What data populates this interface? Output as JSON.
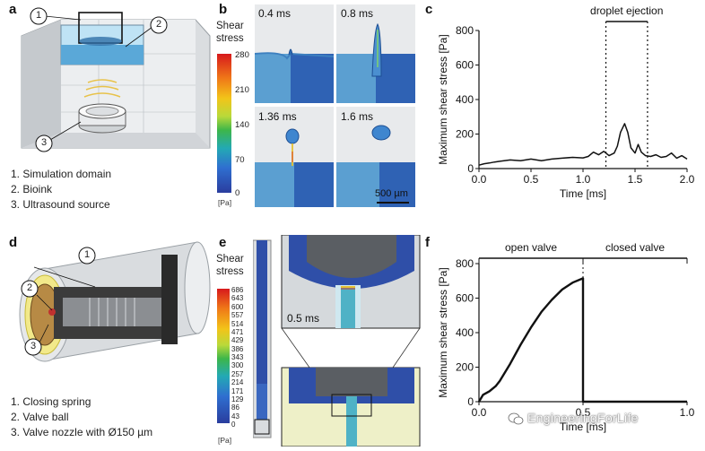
{
  "panels": {
    "a": {
      "letter": "a",
      "callouts": [
        "1",
        "2",
        "3"
      ],
      "legend": [
        "1. Simulation domain",
        "2. Bioink",
        "3. Ultrasound source"
      ]
    },
    "b": {
      "letter": "b",
      "colorbar": {
        "title_line1": "Shear",
        "title_line2": "stress",
        "ticks": [
          "280",
          "210",
          "140",
          "70",
          "0"
        ],
        "unit": "[Pa]"
      },
      "tiles": [
        "0.4 ms",
        "0.8 ms",
        "1.36 ms",
        "1.6 ms"
      ],
      "scale_bar": "500 µm"
    },
    "c": {
      "letter": "c"
    },
    "d": {
      "letter": "d",
      "callouts": [
        "1",
        "2",
        "3"
      ],
      "legend": [
        "1. Closing spring",
        "2. Valve ball",
        "3. Valve nozzle with Ø150 µm"
      ]
    },
    "e": {
      "letter": "e",
      "colorbar": {
        "title_line1": "Shear",
        "title_line2": "stress",
        "ticks": [
          "686",
          "643",
          "600",
          "557",
          "514",
          "471",
          "429",
          "386",
          "343",
          "300",
          "257",
          "214",
          "171",
          "129",
          "86",
          "43",
          "0"
        ],
        "unit": "[Pa]"
      },
      "inset_time": "0.5 ms"
    },
    "f": {
      "letter": "f"
    }
  },
  "watermark": "EngineeringForLife",
  "chart_data": [
    {
      "type": "line",
      "panel": "c",
      "xlabel": "Time [ms]",
      "ylabel": "Maximum shear stress [Pa]",
      "xlim": [
        0,
        2.0
      ],
      "ylim": [
        0,
        800
      ],
      "xticks": [
        "0.0",
        "0.5",
        "1.0",
        "1.5",
        "2.0"
      ],
      "yticks": [
        "0",
        "200",
        "400",
        "600",
        "800"
      ],
      "annotation": {
        "label": "droplet ejection",
        "x_start": 1.22,
        "x_end": 1.62
      },
      "x": [
        0,
        0.05,
        0.1,
        0.15,
        0.2,
        0.3,
        0.4,
        0.5,
        0.6,
        0.7,
        0.8,
        0.9,
        1.0,
        1.05,
        1.1,
        1.15,
        1.2,
        1.25,
        1.3,
        1.33,
        1.36,
        1.4,
        1.43,
        1.46,
        1.5,
        1.53,
        1.56,
        1.6,
        1.65,
        1.7,
        1.75,
        1.8,
        1.85,
        1.9,
        1.95,
        2.0
      ],
      "y": [
        20,
        28,
        32,
        38,
        42,
        50,
        45,
        55,
        45,
        55,
        60,
        65,
        62,
        70,
        95,
        80,
        100,
        75,
        90,
        130,
        210,
        260,
        210,
        120,
        90,
        140,
        95,
        75,
        70,
        80,
        65,
        70,
        90,
        60,
        75,
        55
      ]
    },
    {
      "type": "line",
      "panel": "f",
      "xlabel": "Time [ms]",
      "ylabel": "Maximum shear stress [Pa]",
      "xlim": [
        0,
        1.0
      ],
      "ylim": [
        0,
        800
      ],
      "xticks": [
        "0.0",
        "0.5",
        "1.0"
      ],
      "yticks": [
        "0",
        "200",
        "400",
        "600",
        "800"
      ],
      "regions": [
        {
          "label": "open valve",
          "x_start": 0.0,
          "x_end": 0.5
        },
        {
          "label": "closed valve",
          "x_start": 0.5,
          "x_end": 1.0
        }
      ],
      "x": [
        0,
        0.02,
        0.05,
        0.08,
        0.1,
        0.15,
        0.2,
        0.25,
        0.3,
        0.35,
        0.4,
        0.45,
        0.5,
        0.5,
        1.0
      ],
      "y": [
        0,
        40,
        60,
        90,
        120,
        220,
        330,
        430,
        520,
        590,
        650,
        690,
        715,
        0,
        0
      ]
    }
  ]
}
